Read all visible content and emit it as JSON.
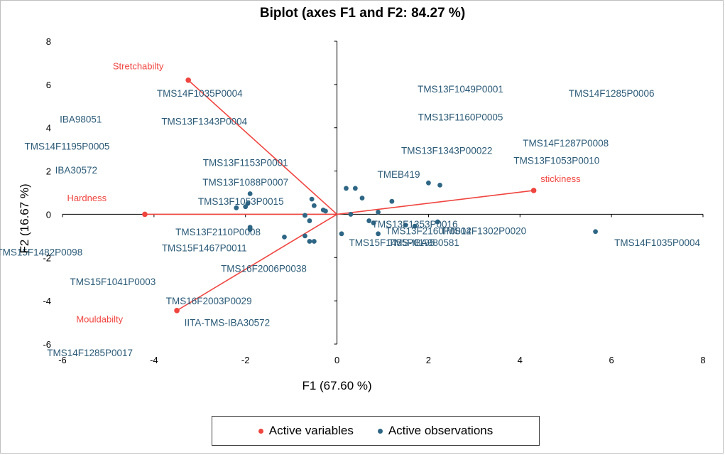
{
  "chart_data": {
    "type": "scatter",
    "title": "Biplot (axes F1 and F2:  84.27 %)",
    "xlabel": "F1 (67.60 %)",
    "ylabel": "F2 (16.67 %)",
    "xlim": [
      -6,
      8
    ],
    "ylim": [
      -6,
      8
    ],
    "xticks": [
      "-6",
      "-4",
      "-2",
      "0",
      "2",
      "4",
      "6",
      "8"
    ],
    "yticks": [
      "-6",
      "-4",
      "-2",
      "0",
      "2",
      "4",
      "6",
      "8"
    ],
    "grid": false,
    "legend_position": "bottom",
    "legend": [
      "Active variables",
      "Active observations"
    ],
    "colors": {
      "variables": "#f0453f",
      "observations": "#2e6685"
    },
    "variables": [
      {
        "name": "Stretchabilty",
        "x": -3.25,
        "y": 6.2
      },
      {
        "name": "Hardness",
        "x": -4.2,
        "y": 0.0
      },
      {
        "name": "Mouldabilty",
        "x": -3.5,
        "y": -4.45
      },
      {
        "name": "stickiness",
        "x": 4.3,
        "y": 1.1
      }
    ],
    "observations": [
      {
        "label": "TMS14F1035P0004",
        "x": -3.0,
        "y": 5.6
      },
      {
        "label": "TMS13F1343P0004",
        "x": -2.9,
        "y": 4.3
      },
      {
        "label": "IBA98051",
        "x": -5.6,
        "y": 4.4
      },
      {
        "label": "TMS14F1195P0005",
        "x": -5.9,
        "y": 3.15
      },
      {
        "label": "IBA30572",
        "x": -5.7,
        "y": 2.05
      },
      {
        "label": "TMS13F1153P0001",
        "x": -2.0,
        "y": 2.4
      },
      {
        "label": "TMS13F1088P0007",
        "x": -2.0,
        "y": 1.5
      },
      {
        "label": "TMS13F1053P0015",
        "x": -2.1,
        "y": 0.6
      },
      {
        "label": "TMS13F2110P0008",
        "x": -2.6,
        "y": -0.8
      },
      {
        "label": "TMS15F1467P0011",
        "x": -2.9,
        "y": -1.55
      },
      {
        "label": "TMS15F1482P0098",
        "x": -6.5,
        "y": -1.75
      },
      {
        "label": "TMS16F2006P0038",
        "x": -1.6,
        "y": -2.5
      },
      {
        "label": "TMS15F1041P0003",
        "x": -4.9,
        "y": -3.1
      },
      {
        "label": "TMS16F2003P0029",
        "x": -2.8,
        "y": -4.0
      },
      {
        "label": "IITA-TMS-IBA30572",
        "x": -2.4,
        "y": -5.0
      },
      {
        "label": "TMS14F1285P0017",
        "x": -5.4,
        "y": -6.4
      },
      {
        "label": "TMS13F1049P0001",
        "x": 2.7,
        "y": 5.8
      },
      {
        "label": "TMS13F1160P0005",
        "x": 2.7,
        "y": 4.5
      },
      {
        "label": "TMS14F1285P0006",
        "x": 6.0,
        "y": 5.6
      },
      {
        "label": "TMS14F1287P0008",
        "x": 5.0,
        "y": 3.3
      },
      {
        "label": "TMS13F1343P00022",
        "x": 2.4,
        "y": 2.95
      },
      {
        "label": "TMS13F1053P0010",
        "x": 4.8,
        "y": 2.5
      },
      {
        "label": "TMEB419",
        "x": 1.35,
        "y": 1.85
      },
      {
        "label": "TMS13F1353P0016",
        "x": 1.7,
        "y": -0.45
      },
      {
        "label": "TMS13F2160P0002",
        "x": 2.0,
        "y": -0.75
      },
      {
        "label": "TMS14F1302P0020",
        "x": 3.2,
        "y": -0.75
      },
      {
        "label": "TMS15F1455P0195",
        "x": 1.2,
        "y": -1.3
      },
      {
        "label": "TMS-IBA980581",
        "x": 1.9,
        "y": -1.3
      },
      {
        "label": "TMS14F1035P0004",
        "x": 7.0,
        "y": -1.3
      }
    ],
    "points": [
      [
        -1.9,
        0.95
      ],
      [
        -2.2,
        0.3
      ],
      [
        -1.95,
        0.5
      ],
      [
        -2.0,
        0.35
      ],
      [
        -0.55,
        0.7
      ],
      [
        -0.5,
        0.4
      ],
      [
        -0.3,
        0.2
      ],
      [
        -0.25,
        0.15
      ],
      [
        -0.6,
        -0.3
      ],
      [
        -0.7,
        -0.05
      ],
      [
        -0.7,
        -1.0
      ],
      [
        -0.6,
        -1.25
      ],
      [
        -0.5,
        -1.25
      ],
      [
        -1.15,
        -1.05
      ],
      [
        -1.9,
        -0.6
      ],
      [
        -1.9,
        -0.7
      ],
      [
        0.2,
        1.2
      ],
      [
        0.4,
        1.2
      ],
      [
        0.55,
        0.75
      ],
      [
        0.3,
        0.0
      ],
      [
        0.1,
        -0.9
      ],
      [
        0.7,
        -0.3
      ],
      [
        0.9,
        0.1
      ],
      [
        0.8,
        -0.4
      ],
      [
        0.9,
        -0.9
      ],
      [
        1.2,
        0.6
      ],
      [
        2.0,
        1.45
      ],
      [
        2.25,
        1.35
      ],
      [
        1.5,
        -0.5
      ],
      [
        1.7,
        -0.55
      ],
      [
        2.2,
        -0.35
      ],
      [
        5.65,
        -0.8
      ]
    ]
  }
}
